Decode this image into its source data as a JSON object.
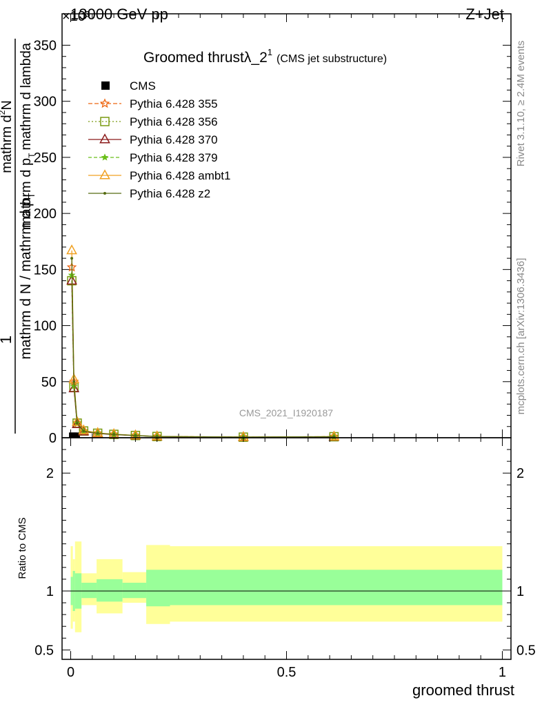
{
  "header": {
    "energy_label": "13000 GeV pp",
    "process_label": "Z+Jet",
    "exponent_label": "×10³"
  },
  "side_labels": {
    "rivet": "Rivet 3.1.10, ≥ 2.4M events",
    "mcplots": "mcplots.cern.ch [arXiv:1306.3436]"
  },
  "chart_data": [
    {
      "type": "line",
      "title": "Groomed thrustλ_2¹",
      "title_main": "Groomed thrustλ_2",
      "title_sup": "1",
      "subtitle": "(CMS jet substructure)",
      "ylabel_left": "1 / (mathrm d N / mathrm d p_T) · mathrm d²N / mathrm d p_T mathrm d lambda",
      "ylabel_parts": {
        "numerator": "1",
        "denominator": "mathrm d N / mathrm d p",
        "denominator_sub": "T",
        "numerator2": "mathrm d",
        "numerator2_sup": "2",
        "numerator2_rest": "N",
        "denominator2": "mathrm d p",
        "denominator2_sub": "T",
        "denominator2_rest": "mathrm d lambda"
      },
      "y_multiplier": 1000,
      "ylim": [
        0,
        378
      ],
      "y_ticks": [
        0,
        50,
        100,
        150,
        200,
        250,
        300,
        350
      ],
      "xlim": [
        -0.02,
        1.02
      ],
      "watermark": "CMS_2021_I1920187",
      "legend_position": "top-left",
      "x": [
        0.0025,
        0.0075,
        0.015,
        0.03,
        0.0625,
        0.1,
        0.15,
        0.2,
        0.4,
        0.61
      ],
      "series": [
        {
          "name": "CMS",
          "color": "#000000",
          "marker": "square",
          "dash": "",
          "values": [
            1.0,
            1.0,
            1.0,
            1.0,
            0.6,
            0.5,
            0.3,
            0.2,
            0.1,
            0.05
          ]
        },
        {
          "name": "Pythia 6.428 355",
          "color": "#ee6611",
          "marker": "star",
          "dash": "6,3",
          "values": [
            152,
            50,
            13,
            6,
            4,
            3,
            2,
            1.2,
            0.6,
            1.0
          ]
        },
        {
          "name": "Pythia 6.428 356",
          "color": "#7a9a10",
          "marker": "square-open",
          "dash": "2,3",
          "values": [
            140,
            45,
            13,
            6,
            4,
            3,
            2,
            1.1,
            0.5,
            0.9
          ]
        },
        {
          "name": "Pythia 6.428 370",
          "color": "#8b1a1a",
          "marker": "triangle-open",
          "dash": "",
          "values": [
            140,
            44,
            12,
            5.5,
            3.8,
            2.8,
            1.9,
            1.0,
            0.5,
            0.8
          ]
        },
        {
          "name": "Pythia 6.428 379",
          "color": "#6abf1a",
          "marker": "star-small",
          "dash": "5,3",
          "values": [
            145,
            46,
            13,
            6,
            4,
            3,
            2,
            1.1,
            0.6,
            0.9
          ]
        },
        {
          "name": "Pythia 6.428 ambt1",
          "color": "#f0a020",
          "marker": "triangle-open",
          "dash": "",
          "values": [
            167,
            52,
            14,
            6.5,
            4.2,
            3.2,
            2.1,
            1.2,
            0.6,
            1.0
          ]
        },
        {
          "name": "Pythia 6.428 z2",
          "color": "#556b10",
          "marker": "dot",
          "dash": "",
          "values": [
            160,
            50,
            13,
            6,
            4,
            3,
            2,
            1.1,
            0.6,
            0.9
          ]
        }
      ]
    },
    {
      "type": "area",
      "ylabel": "Ratio to CMS",
      "xlabel": "groomed thrust",
      "ylim": [
        0.42,
        2.3
      ],
      "y_ticks": [
        0.5,
        1,
        2
      ],
      "y_tick_labels": [
        "0.5",
        "1",
        "2"
      ],
      "x_ticks": [
        0,
        0.5,
        1
      ],
      "x_tick_labels": [
        "0",
        "0.5",
        "1"
      ],
      "xlim": [
        -0.02,
        1.02
      ],
      "reference": 1,
      "colors": {
        "inner": "#99ff99",
        "outer": "#ffff99"
      },
      "bins": [
        {
          "lo": 0.0,
          "hi": 0.005,
          "inner": [
            0.88,
            1.12
          ],
          "outer": [
            0.68,
            1.38
          ]
        },
        {
          "lo": 0.005,
          "hi": 0.01,
          "inner": [
            0.83,
            1.17
          ],
          "outer": [
            0.74,
            1.27
          ]
        },
        {
          "lo": 0.01,
          "hi": 0.025,
          "inner": [
            0.85,
            1.15
          ],
          "outer": [
            0.65,
            1.42
          ]
        },
        {
          "lo": 0.025,
          "hi": 0.06,
          "inner": [
            0.94,
            1.07
          ],
          "outer": [
            0.88,
            1.15
          ]
        },
        {
          "lo": 0.06,
          "hi": 0.12,
          "inner": [
            0.91,
            1.1
          ],
          "outer": [
            0.81,
            1.27
          ]
        },
        {
          "lo": 0.12,
          "hi": 0.175,
          "inner": [
            0.94,
            1.07
          ],
          "outer": [
            0.9,
            1.16
          ]
        },
        {
          "lo": 0.175,
          "hi": 0.23,
          "inner": [
            0.87,
            1.18
          ],
          "outer": [
            0.72,
            1.39
          ]
        },
        {
          "lo": 0.23,
          "hi": 1.0,
          "inner": [
            0.88,
            1.18
          ],
          "outer": [
            0.74,
            1.38
          ]
        }
      ]
    }
  ]
}
